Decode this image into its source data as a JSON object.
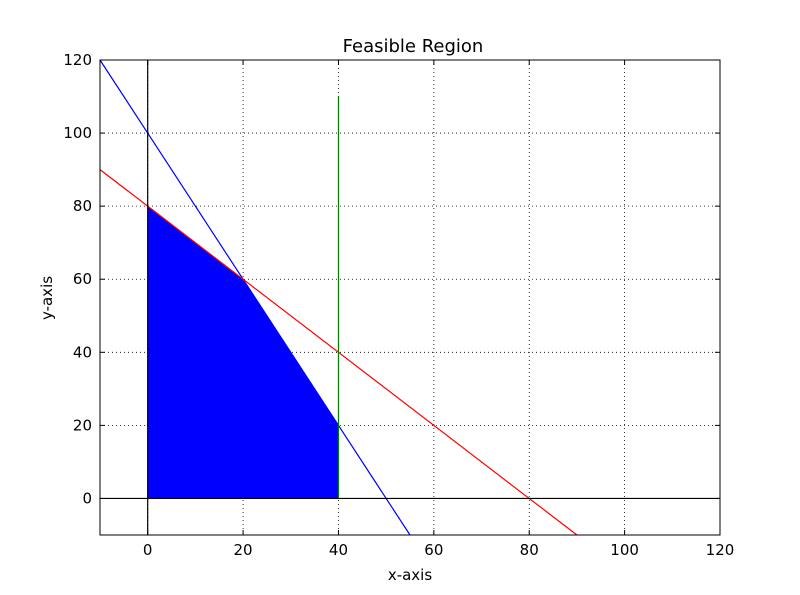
{
  "chart_data": {
    "type": "line",
    "title": "Feasible Region",
    "xlabel": "x-axis",
    "ylabel": "y-axis",
    "xlim": [
      -10,
      120
    ],
    "ylim": [
      -10,
      120
    ],
    "xticks": [
      0,
      20,
      40,
      60,
      80,
      100,
      120
    ],
    "yticks": [
      0,
      20,
      40,
      60,
      80,
      100,
      120
    ],
    "grid": true,
    "series": [
      {
        "color": "#0000ff",
        "points": [
          [
            -10,
            120
          ],
          [
            55,
            -10
          ]
        ]
      },
      {
        "color": "#ff0000",
        "points": [
          [
            -10,
            90
          ],
          [
            90,
            -10
          ]
        ]
      },
      {
        "color": "#008000",
        "points": [
          [
            40,
            0
          ],
          [
            40,
            110
          ]
        ]
      },
      {
        "color": "#000000",
        "points": [
          [
            0,
            -10
          ],
          [
            0,
            120
          ]
        ]
      },
      {
        "color": "#000000",
        "points": [
          [
            -10,
            0
          ],
          [
            120,
            0
          ]
        ]
      }
    ],
    "fill_region": {
      "color": "#0000ff",
      "vertices": [
        [
          0,
          0
        ],
        [
          0,
          80
        ],
        [
          20,
          60
        ],
        [
          40,
          20
        ],
        [
          40,
          0
        ]
      ]
    }
  }
}
